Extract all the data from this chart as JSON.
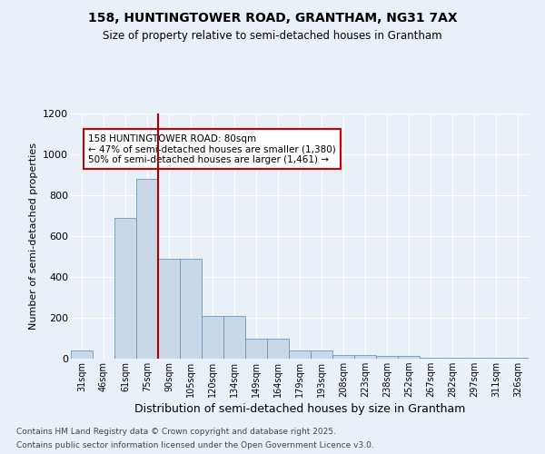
{
  "title1": "158, HUNTINGTOWER ROAD, GRANTHAM, NG31 7AX",
  "title2": "Size of property relative to semi-detached houses in Grantham",
  "xlabel": "Distribution of semi-detached houses by size in Grantham",
  "ylabel": "Number of semi-detached properties",
  "categories": [
    "31sqm",
    "46sqm",
    "61sqm",
    "75sqm",
    "90sqm",
    "105sqm",
    "120sqm",
    "134sqm",
    "149sqm",
    "164sqm",
    "179sqm",
    "193sqm",
    "208sqm",
    "223sqm",
    "238sqm",
    "252sqm",
    "267sqm",
    "282sqm",
    "297sqm",
    "311sqm",
    "326sqm"
  ],
  "values": [
    40,
    0,
    690,
    880,
    490,
    490,
    210,
    210,
    100,
    100,
    40,
    40,
    20,
    20,
    15,
    15,
    5,
    5,
    5,
    5,
    5
  ],
  "bar_color": "#c8d8e8",
  "bar_edge_color": "#6699bb",
  "vline_color": "#aa0000",
  "annotation_box_text": "158 HUNTINGTOWER ROAD: 80sqm\n← 47% of semi-detached houses are smaller (1,380)\n50% of semi-detached houses are larger (1,461) →",
  "ylim": [
    0,
    1200
  ],
  "yticks": [
    0,
    200,
    400,
    600,
    800,
    1000,
    1200
  ],
  "footer1": "Contains HM Land Registry data © Crown copyright and database right 2025.",
  "footer2": "Contains public sector information licensed under the Open Government Licence v3.0.",
  "bg_color": "#eaf0f8",
  "plot_bg_color": "#eaf0f8",
  "grid_color": "#ffffff"
}
